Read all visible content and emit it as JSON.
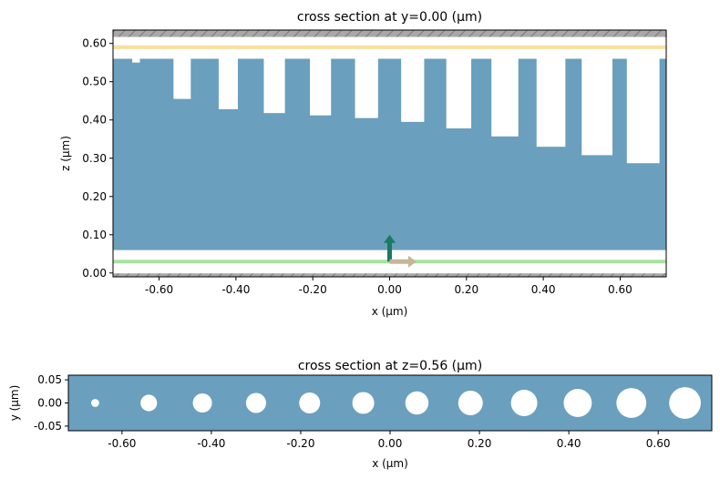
{
  "chart_data": [
    {
      "type": "cross-section",
      "title": "cross section at y=0.00 (μm)",
      "xlabel": "x (μm)",
      "ylabel": "z (μm)",
      "xlim": [
        -0.72,
        0.72
      ],
      "ylim": [
        -0.01,
        0.635
      ],
      "xticks": [
        -0.6,
        -0.4,
        -0.2,
        0.0,
        0.2,
        0.4,
        0.6
      ],
      "xtick_labels": [
        "-0.60",
        "-0.40",
        "-0.20",
        "0.00",
        "0.20",
        "0.40",
        "0.60"
      ],
      "yticks": [
        0.0,
        0.1,
        0.2,
        0.3,
        0.4,
        0.5,
        0.6
      ],
      "ytick_labels": [
        "0.00",
        "0.10",
        "0.20",
        "0.30",
        "0.40",
        "0.50",
        "0.60"
      ],
      "slab": {
        "z_min": 0.06,
        "z_max": 0.56
      },
      "hatched_boundaries": {
        "bottom": [
          -0.01,
          -0.001
        ],
        "top": [
          0.617,
          0.635
        ]
      },
      "monitor_lines": [
        {
          "kind": "source-plane",
          "z": 0.03,
          "color": "#a6e3a0"
        },
        {
          "kind": "monitor-plane",
          "z": 0.59,
          "color": "#f8dfa0"
        }
      ],
      "source_arrows": [
        {
          "kind": "injection-direction",
          "x": 0.0,
          "z": 0.03,
          "dx": 0.0,
          "dz": 0.07,
          "color": "#1a7a62"
        },
        {
          "kind": "polarization",
          "x": 0.0,
          "z": 0.03,
          "dx": 0.07,
          "dz": 0.0,
          "color": "#c8b49a"
        }
      ],
      "holes": [
        {
          "x": -0.66,
          "width": 0.02,
          "z_bottom": 0.55
        },
        {
          "x": -0.54,
          "width": 0.045,
          "z_bottom": 0.455
        },
        {
          "x": -0.42,
          "width": 0.05,
          "z_bottom": 0.428
        },
        {
          "x": -0.3,
          "width": 0.055,
          "z_bottom": 0.418
        },
        {
          "x": -0.18,
          "width": 0.055,
          "z_bottom": 0.412
        },
        {
          "x": -0.06,
          "width": 0.06,
          "z_bottom": 0.405
        },
        {
          "x": 0.06,
          "width": 0.06,
          "z_bottom": 0.395
        },
        {
          "x": 0.18,
          "width": 0.065,
          "z_bottom": 0.378
        },
        {
          "x": 0.3,
          "width": 0.07,
          "z_bottom": 0.357
        },
        {
          "x": 0.42,
          "width": 0.075,
          "z_bottom": 0.33
        },
        {
          "x": 0.54,
          "width": 0.08,
          "z_bottom": 0.308
        },
        {
          "x": 0.66,
          "width": 0.085,
          "z_bottom": 0.287
        }
      ]
    },
    {
      "type": "cross-section",
      "title": "cross section at z=0.56 (μm)",
      "xlabel": "x (μm)",
      "ylabel": "y (μm)",
      "xlim": [
        -0.72,
        0.72
      ],
      "ylim": [
        -0.06,
        0.06
      ],
      "xticks": [
        -0.6,
        -0.4,
        -0.2,
        0.0,
        0.2,
        0.4,
        0.6
      ],
      "xtick_labels": [
        "-0.60",
        "-0.40",
        "-0.20",
        "0.00",
        "0.20",
        "0.40",
        "0.60"
      ],
      "yticks": [
        -0.05,
        0.0,
        0.05
      ],
      "ytick_labels": [
        "-0.05",
        "0.00",
        "0.05"
      ],
      "circles": [
        {
          "x": -0.66,
          "y": 0.0,
          "r": 0.009
        },
        {
          "x": -0.54,
          "y": 0.0,
          "r": 0.0185
        },
        {
          "x": -0.42,
          "y": 0.0,
          "r": 0.0215
        },
        {
          "x": -0.3,
          "y": 0.0,
          "r": 0.0225
        },
        {
          "x": -0.18,
          "y": 0.0,
          "r": 0.0235
        },
        {
          "x": -0.06,
          "y": 0.0,
          "r": 0.0245
        },
        {
          "x": 0.06,
          "y": 0.0,
          "r": 0.026
        },
        {
          "x": 0.18,
          "y": 0.0,
          "r": 0.0275
        },
        {
          "x": 0.3,
          "y": 0.0,
          "r": 0.0295
        },
        {
          "x": 0.42,
          "y": 0.0,
          "r": 0.0315
        },
        {
          "x": 0.54,
          "y": 0.0,
          "r": 0.0335
        },
        {
          "x": 0.66,
          "y": 0.0,
          "r": 0.0355
        }
      ]
    }
  ],
  "colors": {
    "material": "#6a9fbe",
    "background": "#ffffff",
    "hatch_fill": "#a8a8a8",
    "hatch_line": "#7a7a7a"
  }
}
